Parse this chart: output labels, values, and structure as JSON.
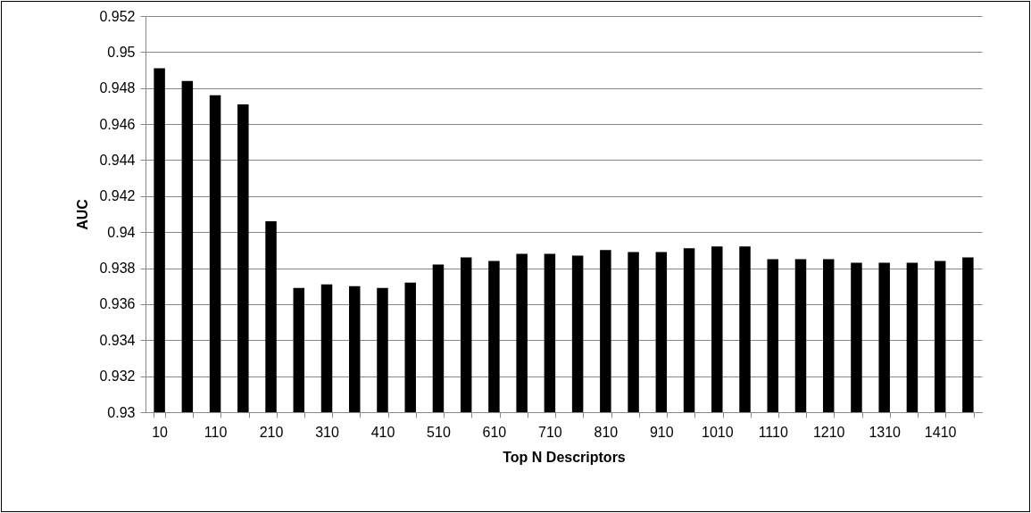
{
  "chart_data": {
    "type": "bar",
    "xlabel": "Top N Descriptors",
    "ylabel": "AUC",
    "categories": [
      "10",
      null,
      "110",
      null,
      "210",
      null,
      "310",
      null,
      "410",
      null,
      "510",
      null,
      "610",
      null,
      "710",
      null,
      "810",
      null,
      "910",
      null,
      "1010",
      null,
      "1110",
      null,
      "1210",
      null,
      "1310",
      null,
      "1410",
      null
    ],
    "values": [
      0.9491,
      0.9484,
      0.9476,
      0.9471,
      0.9406,
      0.9369,
      0.9371,
      0.937,
      0.9369,
      0.9372,
      0.9382,
      0.9386,
      0.9384,
      0.9388,
      0.9388,
      0.9387,
      0.939,
      0.9389,
      0.9389,
      0.9391,
      0.9392,
      0.9392,
      0.9385,
      0.9385,
      0.9385,
      0.9383,
      0.9383,
      0.9383,
      0.9384,
      0.9386
    ],
    "color": "#000000",
    "ylim": [
      0.93,
      0.952
    ],
    "yticks": [
      0.93,
      0.932,
      0.934,
      0.936,
      0.938,
      0.94,
      0.942,
      0.944,
      0.946,
      0.948,
      0.95,
      0.952
    ],
    "grid": "y"
  }
}
